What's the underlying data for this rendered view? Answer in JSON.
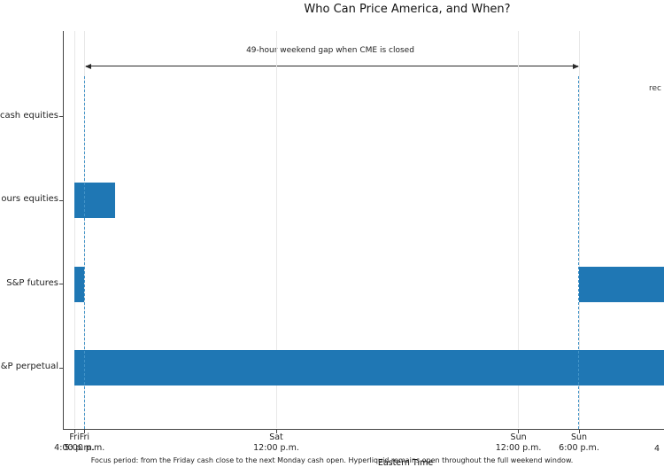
{
  "figure": {
    "title": "Who Can Price America, and When?",
    "xlabel": "Eastern Time",
    "caption": "Focus period: from the Friday cash close to the next Monday cash open. Hyperliquid remains open throughout the full weekend window.",
    "gap_annotation": "49-hour weekend gap when CME is closed",
    "clipped_right_text": "rec",
    "clipped_right_tick_label": "4"
  },
  "chart_data": {
    "type": "bar",
    "variant": "horizontal-interval-timeline",
    "title": "Who Can Price America, and When?",
    "xlabel": "Eastern Time",
    "x_unit": "hours after Fri 4:00 p.m. Eastern",
    "x_range_visible_hours": [
      -1.1,
      58.5
    ],
    "grid": true,
    "x_ticks": [
      {
        "hour": 0,
        "day": "Fri",
        "time": "4:00 p.m."
      },
      {
        "hour": 1,
        "day": "Fri",
        "time": "5:00 p.m."
      },
      {
        "hour": 20,
        "day": "Sat",
        "time": "12:00 p.m."
      },
      {
        "hour": 44,
        "day": "Sun",
        "time": "12:00 p.m."
      },
      {
        "hour": 50,
        "day": "Sun",
        "time": "6:00 p.m."
      }
    ],
    "rows": [
      {
        "label": "cash equities",
        "intervals": []
      },
      {
        "label": "ours equities",
        "intervals": [
          {
            "start_hour": 0,
            "end_hour": 4
          }
        ]
      },
      {
        "label": "S&P futures",
        "intervals": [
          {
            "start_hour": 0,
            "end_hour": 1
          },
          {
            "start_hour": 50,
            "end_hour": 59,
            "clipped_right": true
          }
        ]
      },
      {
        "label": "&P perpetual",
        "intervals": [
          {
            "start_hour": 0,
            "end_hour": 59,
            "clipped_right": true
          }
        ]
      }
    ],
    "vlines_dashed_hours": [
      1,
      50
    ],
    "gap_arrow": {
      "from_hour": 1,
      "to_hour": 50,
      "label": "49-hour weekend gap when CME is closed"
    },
    "colors": {
      "bar": "#1f77b4",
      "vline_dashed": "#4394c8",
      "gridline": "#e7e7e7",
      "spine": "#444444",
      "annotation_text": "#222222"
    }
  }
}
